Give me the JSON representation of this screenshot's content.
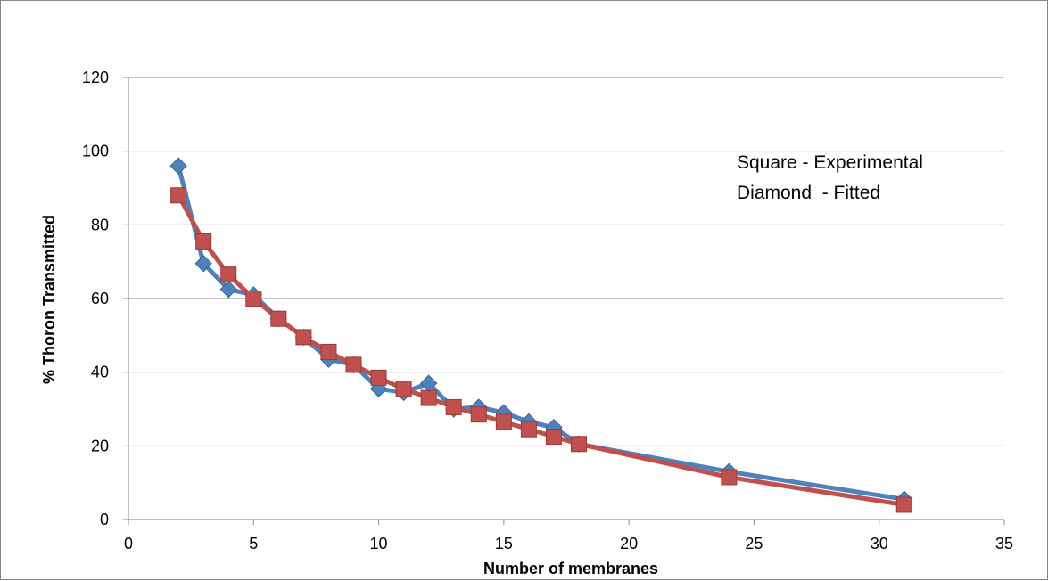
{
  "chart_data": {
    "type": "line",
    "title": "",
    "xlabel": "Number of membranes",
    "ylabel": "% Thoron Transmitted",
    "xlim": [
      0,
      35
    ],
    "ylim": [
      0,
      120
    ],
    "x_ticks": [
      0,
      5,
      10,
      15,
      20,
      25,
      30,
      35
    ],
    "y_ticks": [
      0,
      20,
      40,
      60,
      80,
      100,
      120
    ],
    "grid": "horizontal major gridlines",
    "legend": "none",
    "annotations": [
      "Square - Experimental",
      "Diamond  - Fitted"
    ],
    "series": [
      {
        "marker": "diamond",
        "color": "#4f81bd",
        "points": [
          [
            2,
            96
          ],
          [
            3,
            69.5
          ],
          [
            4,
            62.5
          ],
          [
            5,
            61
          ],
          [
            6,
            54.5
          ],
          [
            7,
            49.5
          ],
          [
            8,
            43.5
          ],
          [
            9,
            42
          ],
          [
            10,
            35.5
          ],
          [
            11,
            34.5
          ],
          [
            12,
            37
          ],
          [
            13,
            30
          ],
          [
            14,
            30.5
          ],
          [
            15,
            29
          ],
          [
            16,
            26.5
          ],
          [
            17,
            25
          ],
          [
            18,
            20.5
          ],
          [
            24,
            13
          ],
          [
            31,
            5.5
          ]
        ]
      },
      {
        "marker": "square",
        "color": "#c0504d",
        "points": [
          [
            2,
            88
          ],
          [
            3,
            75.5
          ],
          [
            4,
            66.5
          ],
          [
            5,
            60
          ],
          [
            6,
            54.5
          ],
          [
            7,
            49.5
          ],
          [
            8,
            45.5
          ],
          [
            9,
            42
          ],
          [
            10,
            38.5
          ],
          [
            11,
            35.5
          ],
          [
            12,
            33
          ],
          [
            13,
            30.5
          ],
          [
            14,
            28.5
          ],
          [
            15,
            26.5
          ],
          [
            16,
            24.5
          ],
          [
            17,
            22.5
          ],
          [
            18,
            20.5
          ],
          [
            24,
            11.5
          ],
          [
            31,
            4
          ]
        ]
      }
    ]
  }
}
